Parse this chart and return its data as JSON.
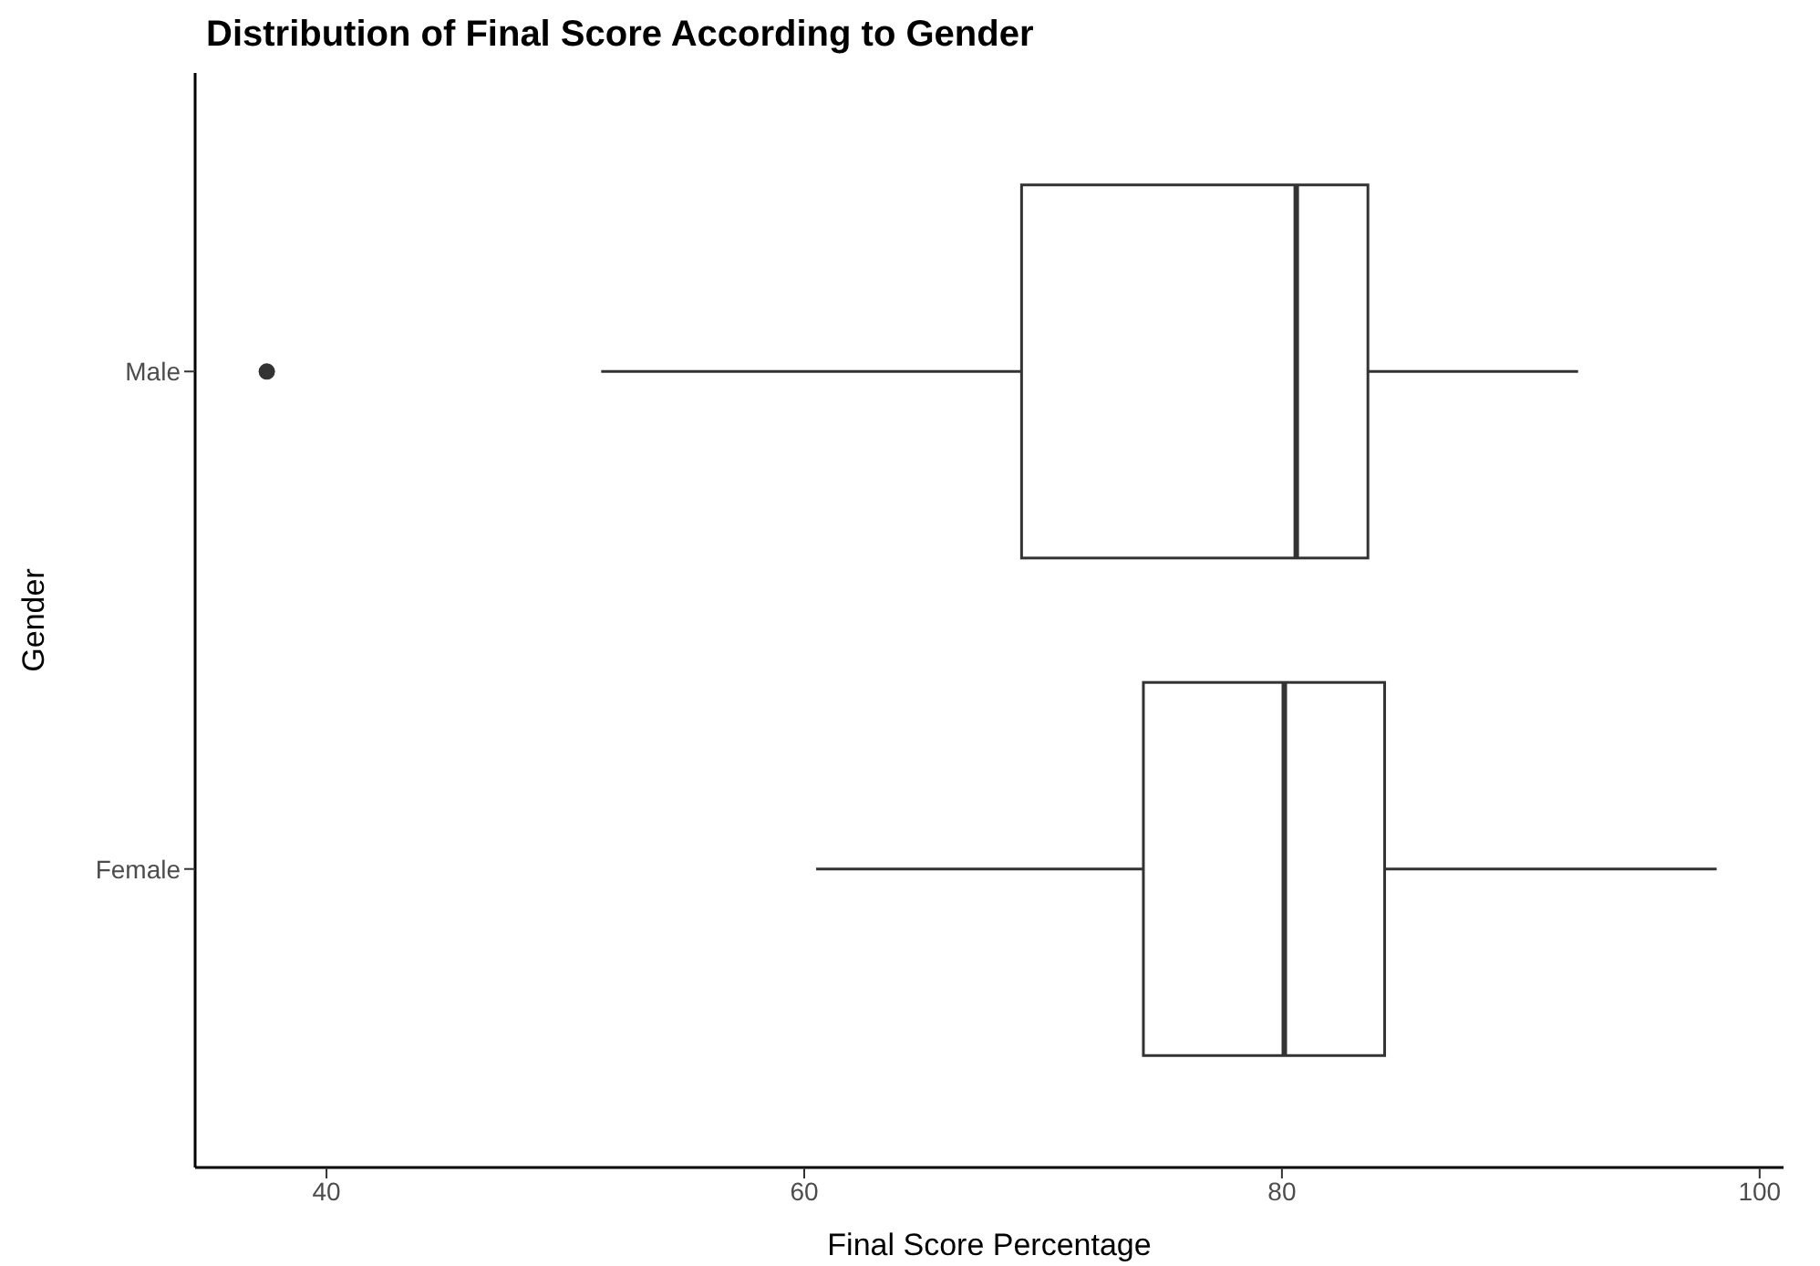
{
  "chart_data": {
    "type": "box",
    "title": "Distribution of Final Score According to Gender",
    "xlabel": "Final Score Percentage",
    "ylabel": "Gender",
    "orientation": "horizontal",
    "categories": [
      "Male",
      "Female"
    ],
    "boxes": [
      {
        "low": 51.5,
        "q1": 69.1,
        "median": 80.6,
        "q3": 83.6,
        "high": 92.4,
        "outliers": [
          37.5
        ]
      },
      {
        "low": 60.5,
        "q1": 74.2,
        "median": 80.1,
        "q3": 84.3,
        "high": 98.2
      }
    ],
    "xlim": [
      34.5,
      101
    ],
    "xticks": [
      40,
      60,
      80,
      100
    ],
    "grid": false
  }
}
